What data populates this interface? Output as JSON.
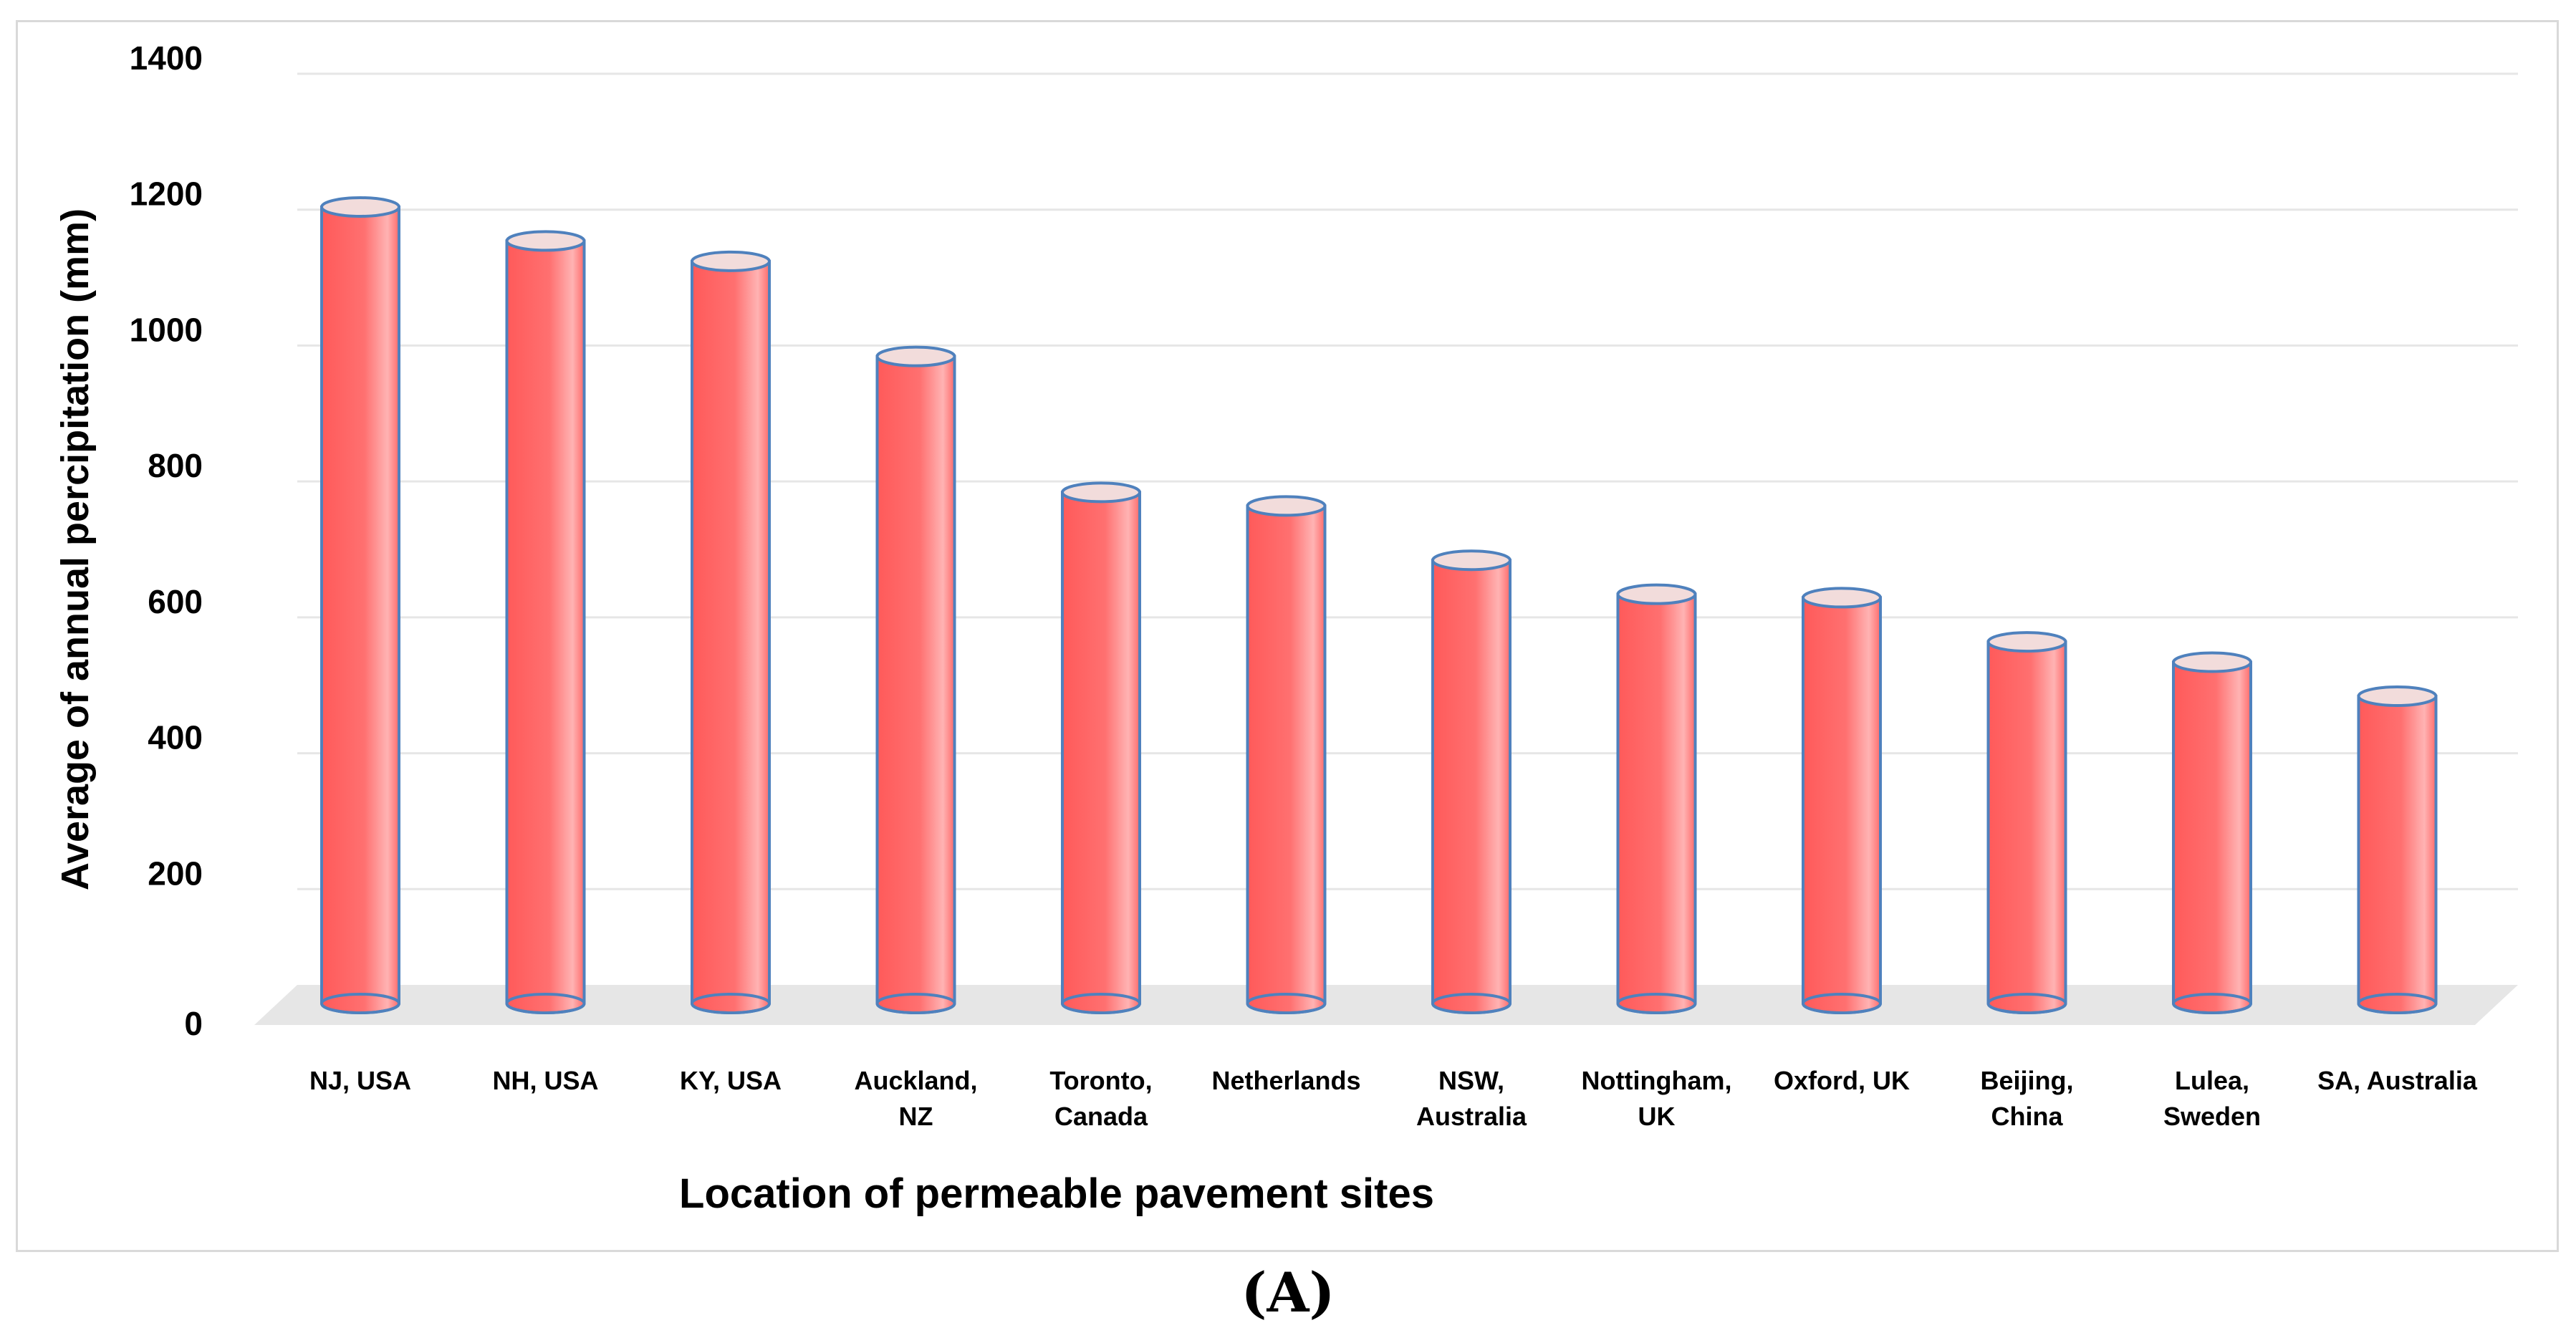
{
  "caption": "(A)",
  "chart_data": {
    "type": "bar",
    "title": "",
    "xlabel": "Location of permeable pavement sites",
    "ylabel": "Average of annual percipitation (mm)",
    "ylim": [
      0,
      1400
    ],
    "yticks": [
      0,
      200,
      400,
      600,
      800,
      1000,
      1200,
      1400
    ],
    "grid": true,
    "categories": [
      [
        "NJ, USA"
      ],
      [
        "NH, USA"
      ],
      [
        "KY, USA"
      ],
      [
        "Auckland,",
        "NZ"
      ],
      [
        "Toronto,",
        "Canada"
      ],
      [
        "Netherlands"
      ],
      [
        "NSW,",
        "Australia"
      ],
      [
        "Nottingham,",
        "UK"
      ],
      [
        "Oxford, UK"
      ],
      [
        "Beijing,",
        "China"
      ],
      [
        "Lulea,",
        "Sweden"
      ],
      [
        "SA, Australia"
      ]
    ],
    "values": [
      1225,
      1175,
      1145,
      1005,
      805,
      785,
      705,
      655,
      650,
      585,
      555,
      505
    ],
    "colors": {
      "bar_fill": "#ff6b6b",
      "bar_edge": "#4f81bd",
      "bar_top": "#f2dcdb",
      "floor": "#e6e6e6",
      "grid": "#e6e6e6"
    }
  }
}
